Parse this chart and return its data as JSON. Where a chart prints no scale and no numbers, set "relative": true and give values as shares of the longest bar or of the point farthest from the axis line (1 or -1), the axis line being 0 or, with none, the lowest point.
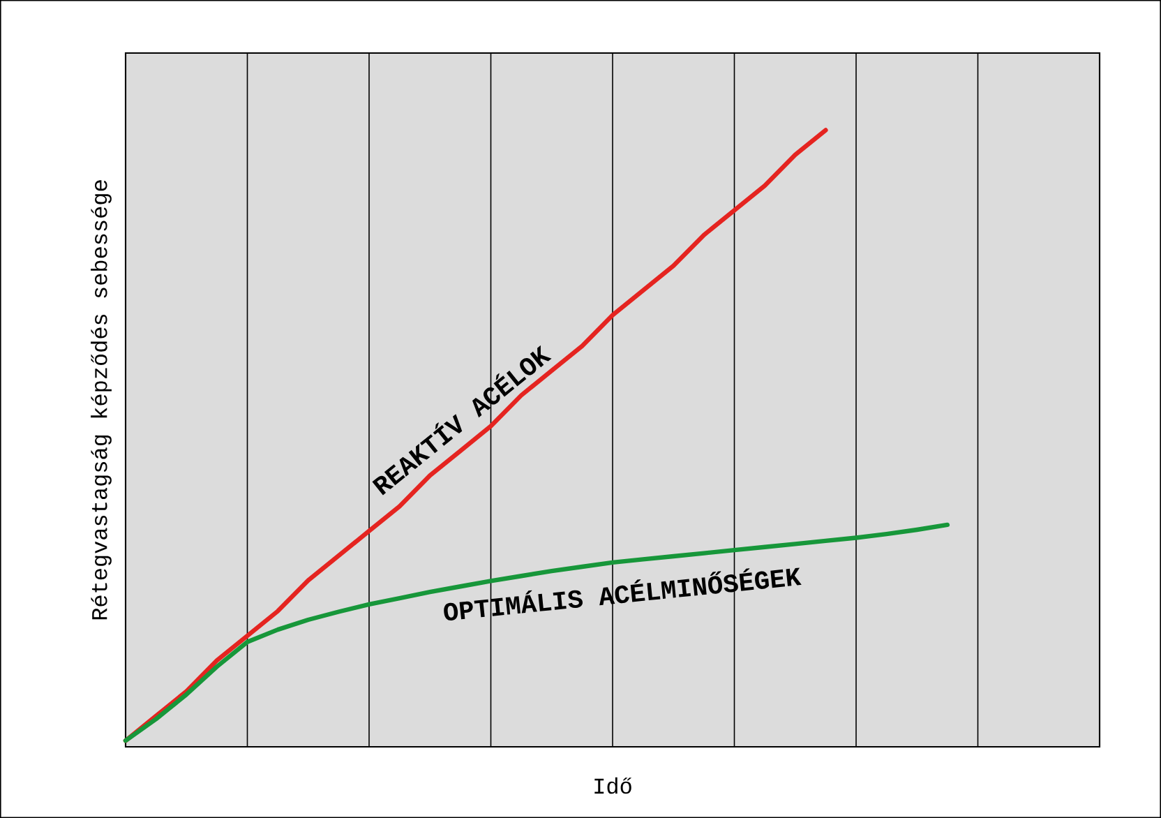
{
  "chart_data": {
    "type": "line",
    "relative": true,
    "xlabel": "Idő",
    "ylabel": "Rétegvastagság képződés sebessége",
    "grid": "x",
    "categories": [
      null,
      null,
      null,
      null,
      null,
      null,
      null,
      null,
      null,
      null,
      null,
      null,
      null,
      null,
      null,
      null,
      null,
      null,
      null,
      null,
      null,
      null,
      null,
      null,
      null,
      null,
      null,
      null,
      null,
      null,
      null,
      null,
      null
    ],
    "series": [
      {
        "name": "REAKTÍV ACÉLOK",
        "color": "#e52420",
        "values": [
          0.01,
          0.05,
          0.09,
          0.14,
          0.18,
          0.22,
          0.27,
          0.31,
          0.35,
          0.39,
          0.44,
          0.48,
          0.52,
          0.57,
          0.61,
          0.65,
          0.7,
          0.74,
          0.78,
          0.83,
          0.87,
          0.91,
          0.96,
          1,
          null,
          null,
          null,
          null,
          null,
          null,
          null,
          null,
          null
        ]
      },
      {
        "name": "OPTIMÁLIS ACÉLMINŐSÉGEK",
        "color": "#17973a",
        "values": [
          0.01,
          0.045,
          0.085,
          0.13,
          0.17,
          0.19,
          0.206,
          0.219,
          0.231,
          0.241,
          0.251,
          0.26,
          0.269,
          0.277,
          0.285,
          0.292,
          0.299,
          0.304,
          0.309,
          0.314,
          0.319,
          0.324,
          0.329,
          0.334,
          0.339,
          0.345,
          0.352,
          0.36,
          null,
          null,
          null,
          null,
          null
        ]
      }
    ]
  }
}
